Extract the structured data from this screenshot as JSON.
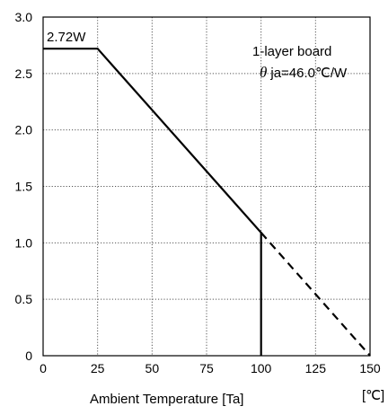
{
  "chart_data": {
    "type": "line",
    "title": "",
    "xlabel": "Ambient Temperature [Ta]",
    "x_unit": "[℃]",
    "ylabel": "",
    "xlim": [
      0,
      150
    ],
    "ylim": [
      0,
      3.0
    ],
    "x_ticks": [
      "0",
      "25",
      "50",
      "75",
      "100",
      "125",
      "150"
    ],
    "y_ticks": [
      "0",
      "0.5",
      "1.0",
      "1.5",
      "2.0",
      "2.5",
      "3.0"
    ],
    "x_tick_values": [
      0,
      25,
      50,
      75,
      100,
      125,
      150
    ],
    "y_tick_values": [
      0,
      0.5,
      1.0,
      1.5,
      2.0,
      2.5,
      3.0
    ],
    "grid": true,
    "series": [
      {
        "style": "solid",
        "x": [
          0,
          25,
          100,
          100
        ],
        "y": [
          2.72,
          2.72,
          1.09,
          0
        ]
      },
      {
        "style": "dashed",
        "x": [
          100,
          150
        ],
        "y": [
          1.09,
          0
        ]
      }
    ],
    "annotations": {
      "peak_label": "2.72W",
      "board": "1-layer board",
      "theta_symbol": "θ",
      "theta_value": "ja=46.0℃/W"
    }
  }
}
